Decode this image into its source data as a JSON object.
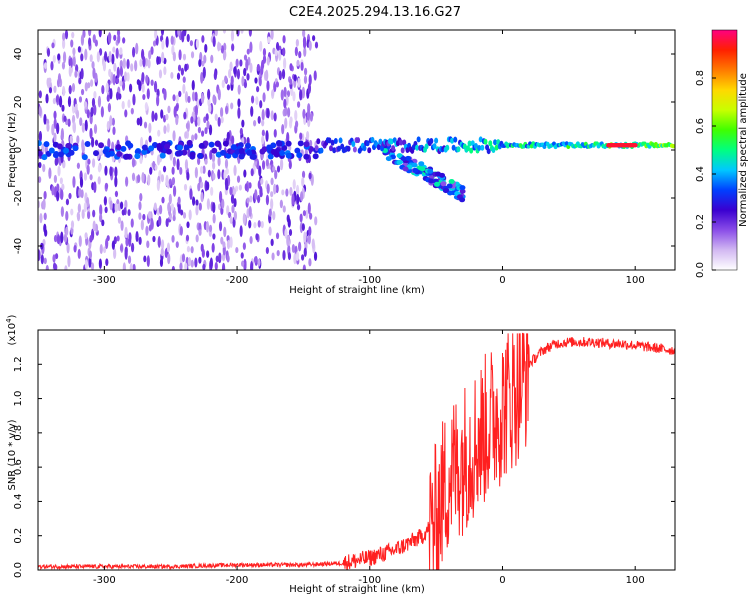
{
  "title": "C2E4.2025.294.13.16.G27",
  "chart_data": [
    {
      "type": "heatmap",
      "name": "spectrogram",
      "xlabel": "Height of straight line (km)",
      "ylabel": "Frequency (Hz)",
      "xlim": [
        -350,
        130
      ],
      "ylim": [
        -50,
        50
      ],
      "xticks": [
        -300,
        -200,
        -100,
        0,
        100
      ],
      "yticks": [
        -40,
        -20,
        0,
        20,
        40
      ],
      "colorbar": {
        "label": "Normalized spectral amplitude",
        "range": [
          0.0,
          1.0
        ],
        "ticks": [
          0.0,
          0.2,
          0.4,
          0.6,
          0.8
        ],
        "colors": [
          "#ffffff",
          "#d2b8f2",
          "#8a4de8",
          "#3a00d0",
          "#0040ff",
          "#00c8ff",
          "#00ff80",
          "#40ff00",
          "#c8ff00",
          "#ffd800",
          "#ff7a00",
          "#ff2000",
          "#ff0080"
        ]
      },
      "features": [
        {
          "label": "noise",
          "x_range": [
            -350,
            -140
          ],
          "freq_range": [
            -50,
            50
          ],
          "amplitude": 0.12
        },
        {
          "label": "carrier",
          "x_range": [
            -140,
            130
          ],
          "freq": 2,
          "amplitude": 0.5
        },
        {
          "label": "peak",
          "x_range": [
            80,
            100
          ],
          "freq": 2,
          "amplitude": 0.95
        },
        {
          "label": "descending-branch",
          "x_range": [
            -90,
            -30
          ],
          "freq_range": [
            -18,
            0
          ],
          "amplitude": 0.3
        }
      ]
    },
    {
      "type": "line",
      "name": "snr",
      "xlabel": "Height of straight line (km)",
      "ylabel": "SNR (10 * v/v)",
      "scale_label": "(x10",
      "scale_exponent": "4",
      "xlim": [
        -350,
        130
      ],
      "ylim": [
        0.0,
        1.4
      ],
      "xticks": [
        -300,
        -200,
        -100,
        0,
        100
      ],
      "yticks": [
        0.0,
        0.2,
        0.4,
        0.6,
        0.8,
        1.0,
        1.2
      ],
      "ytick_labels": [
        "0.0",
        "0.2",
        "0.4",
        "0.6",
        "0.8",
        "1.0",
        "1.2"
      ],
      "color": "#ff2020",
      "series": [
        {
          "x": [
            -350,
            -300,
            -250,
            -200,
            -150,
            -120,
            -100,
            -80,
            -60,
            -50,
            -45,
            -40,
            -35,
            -30,
            -25,
            -20,
            -15,
            -10,
            -5,
            0,
            5,
            10,
            15,
            20,
            30,
            40,
            50,
            60,
            70,
            80,
            90,
            100,
            110,
            120,
            130
          ],
          "y": [
            0.02,
            0.02,
            0.02,
            0.03,
            0.03,
            0.04,
            0.07,
            0.12,
            0.2,
            0.3,
            0.45,
            0.55,
            0.6,
            0.65,
            0.7,
            0.75,
            0.8,
            0.85,
            0.9,
            0.95,
            1.0,
            1.05,
            1.1,
            1.2,
            1.28,
            1.32,
            1.33,
            1.33,
            1.33,
            1.32,
            1.32,
            1.31,
            1.3,
            1.29,
            1.28
          ]
        }
      ]
    }
  ]
}
